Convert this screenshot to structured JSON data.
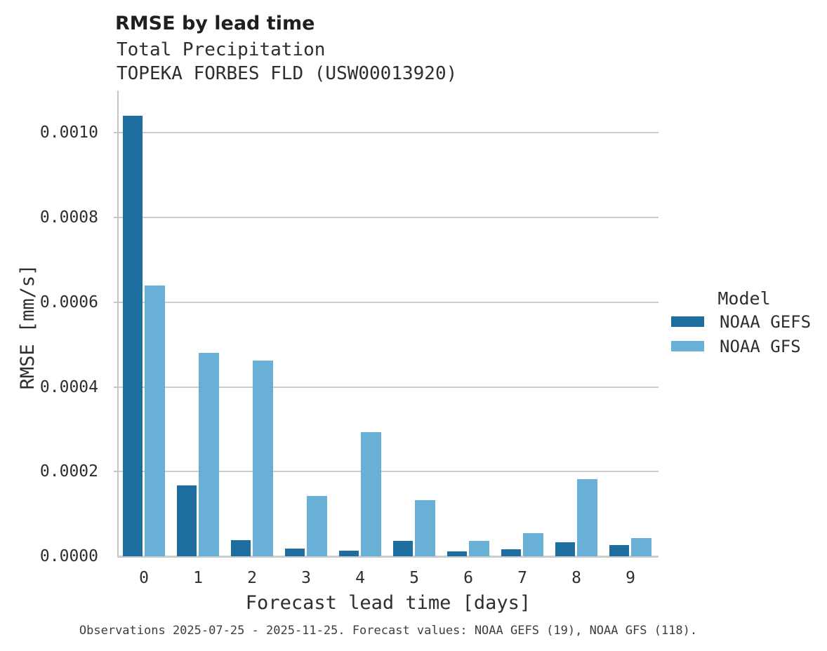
{
  "header": {
    "title": "RMSE by lead time",
    "subtitle_line1": "Total Precipitation",
    "subtitle_line2": "TOPEKA FORBES FLD (USW00013920)"
  },
  "chart_data": {
    "type": "bar",
    "title": "RMSE by lead time",
    "subtitle": [
      "Total Precipitation",
      "TOPEKA FORBES FLD (USW00013920)"
    ],
    "categories": [
      "0",
      "1",
      "2",
      "3",
      "4",
      "5",
      "6",
      "7",
      "8",
      "9"
    ],
    "series": [
      {
        "name": "NOAA GEFS",
        "color": "#1d6e9e",
        "values": [
          0.00104,
          0.000168,
          3.9e-05,
          1.8e-05,
          1.4e-05,
          3.6e-05,
          1.2e-05,
          1.6e-05,
          3.3e-05,
          2.6e-05
        ]
      },
      {
        "name": "NOAA GFS",
        "color": "#69b0d7",
        "values": [
          0.00064,
          0.00048,
          0.000462,
          0.000143,
          0.000293,
          0.000132,
          3.7e-05,
          5.4e-05,
          0.000183,
          4.3e-05
        ]
      }
    ],
    "xlabel": "Forecast lead time [days]",
    "ylabel": "RMSE [mm/s]",
    "ylim": [
      0,
      0.0011
    ],
    "yticks": [
      {
        "value": 0.0,
        "label": "0.0000"
      },
      {
        "value": 0.0002,
        "label": "0.0002"
      },
      {
        "value": 0.0004,
        "label": "0.0004"
      },
      {
        "value": 0.0006,
        "label": "0.0006"
      },
      {
        "value": 0.0008,
        "label": "0.0008"
      },
      {
        "value": 0.001,
        "label": "0.0010"
      }
    ],
    "grid": "horizontal",
    "legend": {
      "title": "Model",
      "position": "right-of-plot"
    },
    "colors": {
      "gridline": "#cccccc",
      "spine": "#c6c6c6",
      "title_text": "#1f1f1f",
      "body_text": "#2e2e2e",
      "caption_text": "#3e3e3e"
    }
  },
  "footer": {
    "caption": "Observations 2025-07-25 - 2025-11-25. Forecast values: NOAA GEFS (19), NOAA GFS (118)."
  }
}
